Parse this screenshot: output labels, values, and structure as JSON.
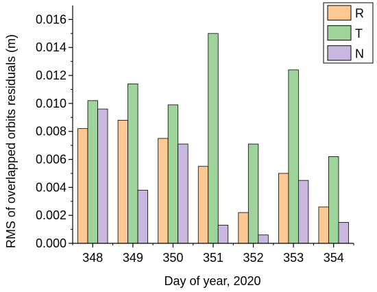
{
  "chart_data": {
    "type": "bar",
    "title": "",
    "xlabel": "Day of year, 2020",
    "ylabel": "RMS of overlapped orbits residuals (m)",
    "categories": [
      "348",
      "349",
      "350",
      "351",
      "352",
      "353",
      "354"
    ],
    "ylim": [
      0,
      0.017
    ],
    "yticks": [
      "0.000",
      "0.002",
      "0.004",
      "0.006",
      "0.008",
      "0.010",
      "0.012",
      "0.014",
      "0.016"
    ],
    "grid": false,
    "legend_position": "top-right",
    "series": [
      {
        "name": "R",
        "color": "#fdc892",
        "values": [
          0.0082,
          0.0088,
          0.0075,
          0.0055,
          0.0022,
          0.005,
          0.0026
        ]
      },
      {
        "name": "T",
        "color": "#9ed49a",
        "values": [
          0.0102,
          0.0114,
          0.0099,
          0.015,
          0.0071,
          0.0124,
          0.0062
        ]
      },
      {
        "name": "N",
        "color": "#c8b8e0",
        "values": [
          0.0096,
          0.0038,
          0.0071,
          0.0013,
          0.0006,
          0.0045,
          0.0015
        ]
      }
    ]
  }
}
